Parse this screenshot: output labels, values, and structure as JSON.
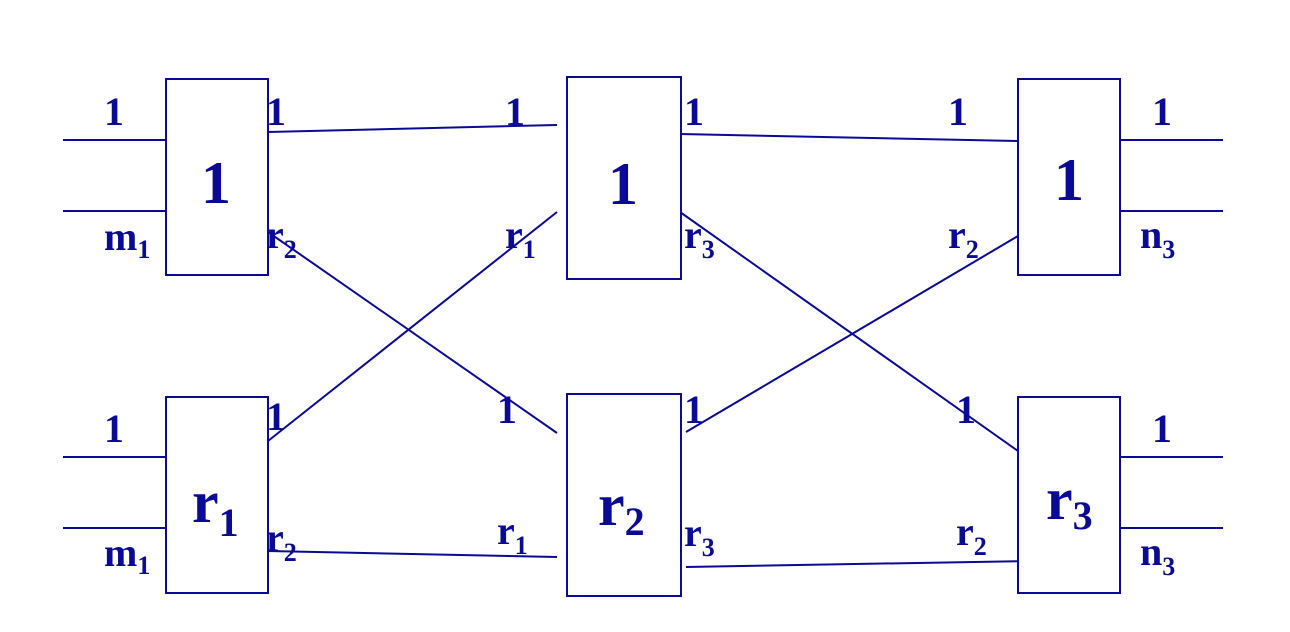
{
  "stage1": {
    "top": {
      "name": "1",
      "in_first": "1",
      "in_last": "m",
      "in_last_sub": "1",
      "out_first": "1",
      "out_last": "r",
      "out_last_sub": "2"
    },
    "bottom": {
      "name": "r",
      "name_sub": "1",
      "in_first": "1",
      "in_last": "m",
      "in_last_sub": "1",
      "out_first": "1",
      "out_last": "r",
      "out_last_sub": "2"
    }
  },
  "stage2": {
    "top": {
      "name": "1",
      "in_first": "1",
      "in_last": "r",
      "in_last_sub": "1",
      "out_first": "1",
      "out_last": "r",
      "out_last_sub": "3"
    },
    "bottom": {
      "name": "r",
      "name_sub": "2",
      "in_first": "1",
      "in_last": "r",
      "in_last_sub": "1",
      "out_first": "1",
      "out_last": "r",
      "out_last_sub": "3"
    }
  },
  "stage3": {
    "top": {
      "name": "1",
      "in_first": "1",
      "in_last": "r",
      "in_last_sub": "2",
      "out_first": "1",
      "out_last": "n",
      "out_last_sub": "3"
    },
    "bottom": {
      "name": "r",
      "name_sub": "3",
      "in_first": "1",
      "in_last": "r",
      "in_last_sub": "2",
      "out_first": "1",
      "out_last": "n",
      "out_last_sub": "3"
    }
  },
  "colors": {
    "ink": "#0a0a96",
    "background": "#ffffff"
  }
}
